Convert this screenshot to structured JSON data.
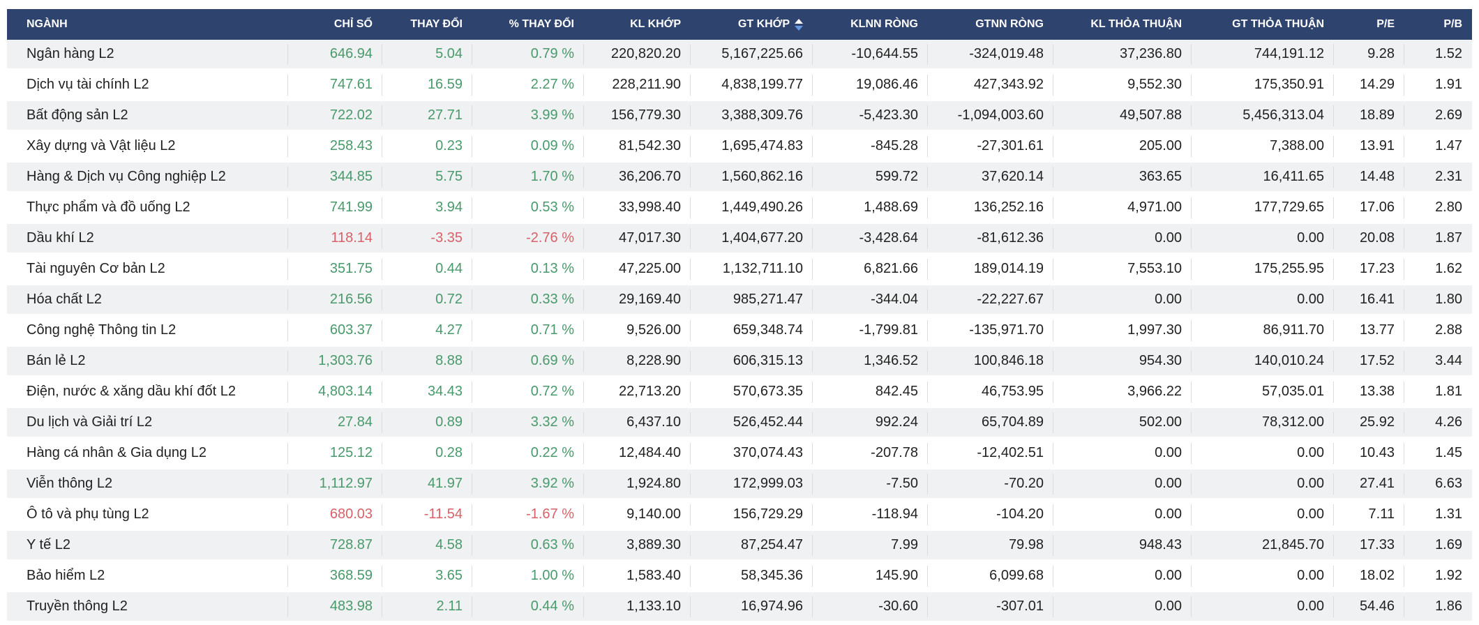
{
  "colors": {
    "header_bg": "#2e436e",
    "up": "#489a6b",
    "down": "#d86169",
    "row_alt": "#f0f1f2",
    "divider": "#dcdcdc",
    "text": "#1f2020",
    "sort_active": "#6699e0"
  },
  "table": {
    "columns": [
      {
        "key": "sector",
        "label": "NGÀNH"
      },
      {
        "key": "chi-so",
        "label": "CHỈ SỐ"
      },
      {
        "key": "thay-doi",
        "label": "THAY ĐỔI"
      },
      {
        "key": "pct-thay-doi",
        "label": "% THAY ĐỔI"
      },
      {
        "key": "kl-khop",
        "label": "KL KHỚP"
      },
      {
        "key": "gt-khop",
        "label": "GT KHỚP",
        "sort": "desc"
      },
      {
        "key": "klnn-rong",
        "label": "KLNN RÒNG"
      },
      {
        "key": "gtnn-rong",
        "label": "GTNN RÒNG"
      },
      {
        "key": "kl-thoa-thuan",
        "label": "KL THỎA THUẬN"
      },
      {
        "key": "gt-thoa-thuan",
        "label": "GT THỎA THUẬN"
      },
      {
        "key": "pe",
        "label": "P/E"
      },
      {
        "key": "pb",
        "label": "P/B"
      }
    ],
    "rows": [
      {
        "trend": "up",
        "values": [
          "Ngân hàng L2",
          "646.94",
          "5.04",
          "0.79 %",
          "220,820.20",
          "5,167,225.66",
          "-10,644.55",
          "-324,019.48",
          "37,236.80",
          "744,191.12",
          "9.28",
          "1.52"
        ]
      },
      {
        "trend": "up",
        "values": [
          "Dịch vụ tài chính L2",
          "747.61",
          "16.59",
          "2.27 %",
          "228,211.90",
          "4,838,199.77",
          "19,086.46",
          "427,343.92",
          "9,552.30",
          "175,350.91",
          "14.29",
          "1.91"
        ]
      },
      {
        "trend": "up",
        "values": [
          "Bất động sản L2",
          "722.02",
          "27.71",
          "3.99 %",
          "156,779.30",
          "3,388,309.76",
          "-5,423.30",
          "-1,094,003.60",
          "49,507.88",
          "5,456,313.04",
          "18.89",
          "2.69"
        ]
      },
      {
        "trend": "up",
        "values": [
          "Xây dựng và Vật liệu L2",
          "258.43",
          "0.23",
          "0.09 %",
          "81,542.30",
          "1,695,474.83",
          "-845.28",
          "-27,301.61",
          "205.00",
          "7,388.00",
          "13.91",
          "1.47"
        ]
      },
      {
        "trend": "up",
        "values": [
          "Hàng & Dịch vụ Công nghiệp L2",
          "344.85",
          "5.75",
          "1.70 %",
          "36,206.70",
          "1,560,862.16",
          "599.72",
          "37,620.14",
          "363.65",
          "16,411.65",
          "14.48",
          "2.31"
        ]
      },
      {
        "trend": "up",
        "values": [
          "Thực phẩm và đồ uống L2",
          "741.99",
          "3.94",
          "0.53 %",
          "33,998.40",
          "1,449,490.26",
          "1,488.69",
          "136,252.16",
          "4,971.00",
          "177,729.65",
          "17.06",
          "2.80"
        ]
      },
      {
        "trend": "down",
        "values": [
          "Dầu khí L2",
          "118.14",
          "-3.35",
          "-2.76 %",
          "47,017.30",
          "1,404,677.20",
          "-3,428.64",
          "-81,612.36",
          "0.00",
          "0.00",
          "20.08",
          "1.87"
        ]
      },
      {
        "trend": "up",
        "values": [
          "Tài nguyên Cơ bản L2",
          "351.75",
          "0.44",
          "0.13 %",
          "47,225.00",
          "1,132,711.10",
          "6,821.66",
          "189,014.19",
          "7,553.10",
          "175,255.95",
          "17.23",
          "1.62"
        ]
      },
      {
        "trend": "up",
        "values": [
          "Hóa chất L2",
          "216.56",
          "0.72",
          "0.33 %",
          "29,169.40",
          "985,271.47",
          "-344.04",
          "-22,227.67",
          "0.00",
          "0.00",
          "16.41",
          "1.80"
        ]
      },
      {
        "trend": "up",
        "values": [
          "Công nghệ Thông tin L2",
          "603.37",
          "4.27",
          "0.71 %",
          "9,526.00",
          "659,348.74",
          "-1,799.81",
          "-135,971.70",
          "1,997.30",
          "86,911.70",
          "13.77",
          "2.88"
        ]
      },
      {
        "trend": "up",
        "values": [
          "Bán lẻ L2",
          "1,303.76",
          "8.88",
          "0.69 %",
          "8,228.90",
          "606,315.13",
          "1,346.52",
          "100,846.18",
          "954.30",
          "140,010.24",
          "17.52",
          "3.44"
        ]
      },
      {
        "trend": "up",
        "values": [
          "Điện, nước & xăng dầu khí đốt L2",
          "4,803.14",
          "34.43",
          "0.72 %",
          "22,713.20",
          "570,673.35",
          "842.45",
          "46,753.95",
          "3,966.22",
          "57,035.01",
          "13.38",
          "1.81"
        ]
      },
      {
        "trend": "up",
        "values": [
          "Du lịch và Giải trí L2",
          "27.84",
          "0.89",
          "3.32 %",
          "6,437.10",
          "526,452.44",
          "992.24",
          "65,704.89",
          "502.00",
          "78,312.00",
          "25.92",
          "4.26"
        ]
      },
      {
        "trend": "up",
        "values": [
          "Hàng cá nhân & Gia dụng L2",
          "125.12",
          "0.28",
          "0.22 %",
          "12,484.40",
          "370,074.43",
          "-207.78",
          "-12,402.51",
          "0.00",
          "0.00",
          "10.43",
          "1.45"
        ]
      },
      {
        "trend": "up",
        "values": [
          "Viễn thông L2",
          "1,112.97",
          "41.97",
          "3.92 %",
          "1,924.80",
          "172,999.03",
          "-7.50",
          "-70.20",
          "0.00",
          "0.00",
          "27.41",
          "6.63"
        ]
      },
      {
        "trend": "down",
        "values": [
          "Ô tô và phụ tùng L2",
          "680.03",
          "-11.54",
          "-1.67 %",
          "9,140.00",
          "156,729.29",
          "-118.94",
          "-104.20",
          "0.00",
          "0.00",
          "7.11",
          "1.31"
        ]
      },
      {
        "trend": "up",
        "values": [
          "Y tế L2",
          "728.87",
          "4.58",
          "0.63 %",
          "3,889.30",
          "87,254.47",
          "7.99",
          "79.98",
          "948.43",
          "21,845.70",
          "17.33",
          "1.69"
        ]
      },
      {
        "trend": "up",
        "values": [
          "Bảo hiểm L2",
          "368.59",
          "3.65",
          "1.00 %",
          "1,583.40",
          "58,345.36",
          "145.90",
          "6,099.68",
          "0.00",
          "0.00",
          "18.02",
          "1.92"
        ]
      },
      {
        "trend": "up",
        "values": [
          "Truyền thông L2",
          "483.98",
          "2.11",
          "0.44 %",
          "1,133.10",
          "16,974.96",
          "-30.60",
          "-307.01",
          "0.00",
          "0.00",
          "54.46",
          "1.86"
        ]
      }
    ]
  }
}
